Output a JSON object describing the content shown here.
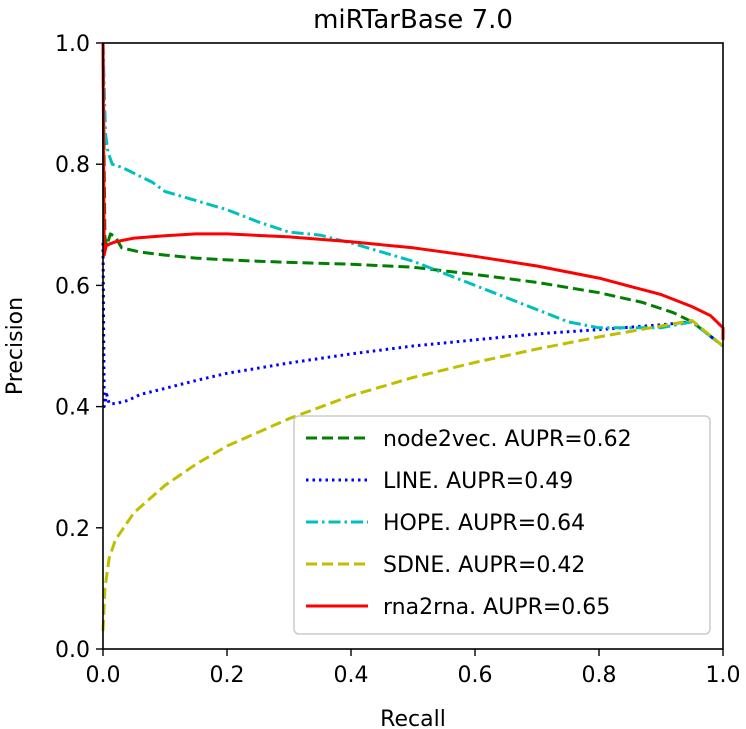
{
  "chart_data": {
    "type": "line",
    "title": "miRTarBase 7.0",
    "xlabel": "Recall",
    "ylabel": "Precision",
    "xlim": [
      0.0,
      1.0
    ],
    "ylim": [
      0.0,
      1.0
    ],
    "xticks": [
      "0.0",
      "0.2",
      "0.4",
      "0.6",
      "0.8",
      "1.0"
    ],
    "yticks": [
      "0.0",
      "0.2",
      "0.4",
      "0.6",
      "0.8",
      "1.0"
    ],
    "grid": false,
    "legend_position": "lower-right",
    "series": [
      {
        "name": "node2vec. AUPR=0.62",
        "color": "#008000",
        "style": "dashed",
        "points": [
          [
            0.0,
            1.0
          ],
          [
            0.003,
            0.68
          ],
          [
            0.006,
            0.665
          ],
          [
            0.012,
            0.685
          ],
          [
            0.02,
            0.68
          ],
          [
            0.03,
            0.662
          ],
          [
            0.06,
            0.655
          ],
          [
            0.1,
            0.65
          ],
          [
            0.15,
            0.645
          ],
          [
            0.2,
            0.642
          ],
          [
            0.25,
            0.64
          ],
          [
            0.3,
            0.638
          ],
          [
            0.4,
            0.635
          ],
          [
            0.5,
            0.63
          ],
          [
            0.6,
            0.618
          ],
          [
            0.7,
            0.605
          ],
          [
            0.8,
            0.588
          ],
          [
            0.87,
            0.572
          ],
          [
            0.92,
            0.555
          ],
          [
            0.95,
            0.54
          ],
          [
            1.0,
            0.5
          ]
        ]
      },
      {
        "name": "LINE. AUPR=0.49",
        "color": "#0000ff",
        "style": "dotted",
        "points": [
          [
            0.0,
            0.67
          ],
          [
            0.002,
            0.4
          ],
          [
            0.006,
            0.42
          ],
          [
            0.01,
            0.405
          ],
          [
            0.02,
            0.405
          ],
          [
            0.04,
            0.41
          ],
          [
            0.06,
            0.42
          ],
          [
            0.1,
            0.43
          ],
          [
            0.15,
            0.443
          ],
          [
            0.2,
            0.455
          ],
          [
            0.3,
            0.472
          ],
          [
            0.4,
            0.487
          ],
          [
            0.5,
            0.5
          ],
          [
            0.6,
            0.51
          ],
          [
            0.7,
            0.52
          ],
          [
            0.8,
            0.527
          ],
          [
            0.9,
            0.535
          ],
          [
            0.95,
            0.54
          ],
          [
            1.0,
            0.5
          ]
        ]
      },
      {
        "name": "HOPE. AUPR=0.64",
        "color": "#00bfbf",
        "style": "dashdot",
        "points": [
          [
            0.0,
            1.0
          ],
          [
            0.004,
            0.85
          ],
          [
            0.008,
            0.82
          ],
          [
            0.015,
            0.8
          ],
          [
            0.03,
            0.795
          ],
          [
            0.05,
            0.785
          ],
          [
            0.08,
            0.77
          ],
          [
            0.1,
            0.755
          ],
          [
            0.15,
            0.74
          ],
          [
            0.2,
            0.725
          ],
          [
            0.25,
            0.705
          ],
          [
            0.3,
            0.688
          ],
          [
            0.35,
            0.683
          ],
          [
            0.4,
            0.67
          ],
          [
            0.45,
            0.655
          ],
          [
            0.5,
            0.64
          ],
          [
            0.55,
            0.62
          ],
          [
            0.6,
            0.6
          ],
          [
            0.65,
            0.58
          ],
          [
            0.7,
            0.56
          ],
          [
            0.75,
            0.54
          ],
          [
            0.8,
            0.53
          ],
          [
            0.85,
            0.53
          ],
          [
            0.9,
            0.53
          ],
          [
            0.95,
            0.54
          ],
          [
            1.0,
            0.5
          ]
        ]
      },
      {
        "name": "SDNE. AUPR=0.42",
        "color": "#bfbf00",
        "style": "dashed",
        "points": [
          [
            0.0,
            0.03
          ],
          [
            0.003,
            0.1
          ],
          [
            0.01,
            0.15
          ],
          [
            0.02,
            0.18
          ],
          [
            0.05,
            0.225
          ],
          [
            0.1,
            0.27
          ],
          [
            0.15,
            0.305
          ],
          [
            0.2,
            0.335
          ],
          [
            0.3,
            0.38
          ],
          [
            0.4,
            0.418
          ],
          [
            0.5,
            0.448
          ],
          [
            0.6,
            0.473
          ],
          [
            0.7,
            0.495
          ],
          [
            0.8,
            0.515
          ],
          [
            0.9,
            0.533
          ],
          [
            0.95,
            0.542
          ],
          [
            1.0,
            0.5
          ]
        ]
      },
      {
        "name": "rna2rna. AUPR=0.65",
        "color": "#ff0000",
        "style": "solid",
        "points": [
          [
            0.0,
            1.0
          ],
          [
            0.002,
            0.65
          ],
          [
            0.005,
            0.665
          ],
          [
            0.01,
            0.668
          ],
          [
            0.02,
            0.672
          ],
          [
            0.05,
            0.678
          ],
          [
            0.1,
            0.682
          ],
          [
            0.15,
            0.685
          ],
          [
            0.2,
            0.685
          ],
          [
            0.3,
            0.68
          ],
          [
            0.4,
            0.672
          ],
          [
            0.5,
            0.662
          ],
          [
            0.6,
            0.648
          ],
          [
            0.7,
            0.632
          ],
          [
            0.8,
            0.612
          ],
          [
            0.9,
            0.585
          ],
          [
            0.95,
            0.565
          ],
          [
            0.98,
            0.55
          ],
          [
            1.0,
            0.53
          ],
          [
            1.0,
            0.51
          ]
        ]
      }
    ]
  }
}
